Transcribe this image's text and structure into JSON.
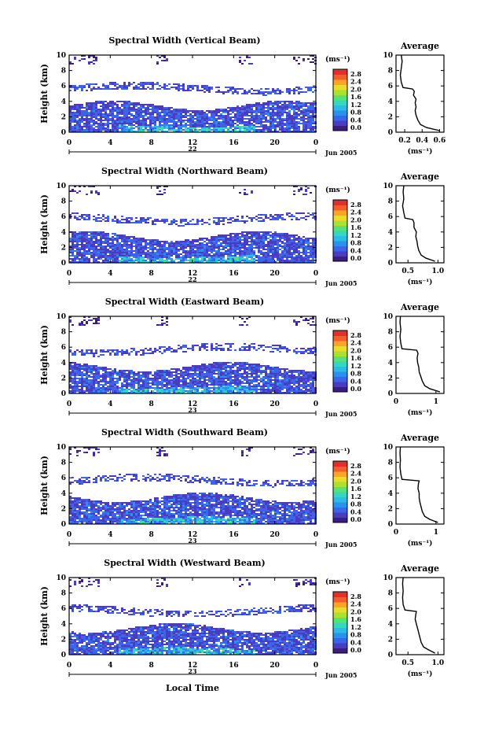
{
  "colorbar": {
    "unit_label": "(ms⁻¹)",
    "ticks": [
      "0.0",
      "0.4",
      "0.8",
      "1.2",
      "1.6",
      "2.0",
      "2.4",
      "2.8"
    ],
    "colors": [
      "#3a1f7a",
      "#4b3bbf",
      "#3f63e8",
      "#2e8fef",
      "#2bbbe6",
      "#35d7c3",
      "#55e27e",
      "#a6e335",
      "#e8dd2a",
      "#f7a626",
      "#f2602a",
      "#e0302a"
    ]
  },
  "common": {
    "x_ticks": [
      "0",
      "4",
      "8",
      "12",
      "16",
      "20",
      "0"
    ],
    "y_ticks": [
      "0",
      "2",
      "4",
      "6",
      "8",
      "10"
    ],
    "ylabel": "Height (km)",
    "day_label_1": "22",
    "day_label_2": "23",
    "month_label": "Jun 2005",
    "xlabel": "Local Time",
    "avg_title": "Average",
    "avg_unit": "(ms⁻¹)"
  },
  "chart_data": [
    {
      "type": "heatmap",
      "title": "Spectral Width (Vertical Beam)",
      "day_label": "22",
      "xlim": [
        0,
        24
      ],
      "ylim": [
        0,
        10
      ],
      "avg_xticks": [
        "0.2",
        "0.4",
        "0.6"
      ],
      "avg_xlim": [
        0.1,
        0.65
      ],
      "profile": [
        [
          0.6,
          0.2
        ],
        [
          0.45,
          0.6
        ],
        [
          0.38,
          1
        ],
        [
          0.35,
          1.6
        ],
        [
          0.33,
          2.2
        ],
        [
          0.32,
          2.8
        ],
        [
          0.33,
          3.3
        ],
        [
          0.32,
          3.8
        ],
        [
          0.33,
          4.3
        ],
        [
          0.3,
          4.8
        ],
        [
          0.31,
          5.3
        ],
        [
          0.29,
          5.6
        ],
        [
          0.18,
          5.8
        ],
        [
          0.16,
          6.5
        ],
        [
          0.15,
          7.4
        ],
        [
          0.16,
          8.3
        ],
        [
          0.17,
          9.2
        ],
        [
          0.16,
          10
        ]
      ]
    },
    {
      "type": "heatmap",
      "title": "Spectral Width (Northward Beam)",
      "day_label": "22",
      "xlim": [
        0,
        24
      ],
      "ylim": [
        0,
        10
      ],
      "avg_xticks": [
        "0.5",
        "1.0"
      ],
      "avg_xlim": [
        0.3,
        1.1
      ],
      "profile": [
        [
          0.95,
          0.2
        ],
        [
          0.8,
          0.6
        ],
        [
          0.72,
          1
        ],
        [
          0.68,
          1.6
        ],
        [
          0.66,
          2.2
        ],
        [
          0.65,
          2.8
        ],
        [
          0.63,
          3.4
        ],
        [
          0.64,
          4
        ],
        [
          0.6,
          4.6
        ],
        [
          0.6,
          5.2
        ],
        [
          0.58,
          5.6
        ],
        [
          0.45,
          5.8
        ],
        [
          0.43,
          6.5
        ],
        [
          0.41,
          7.4
        ],
        [
          0.43,
          8.3
        ],
        [
          0.42,
          9.2
        ],
        [
          0.43,
          10
        ]
      ]
    },
    {
      "type": "heatmap",
      "title": "Spectral Width (Eastward Beam)",
      "day_label": "23",
      "xlim": [
        0,
        24
      ],
      "ylim": [
        0,
        10
      ],
      "avg_xticks": [
        "0",
        "1"
      ],
      "avg_xlim": [
        0,
        1.2
      ],
      "profile": [
        [
          1.1,
          0.2
        ],
        [
          0.85,
          0.6
        ],
        [
          0.72,
          1
        ],
        [
          0.66,
          1.6
        ],
        [
          0.62,
          2.2
        ],
        [
          0.58,
          2.8
        ],
        [
          0.57,
          3.4
        ],
        [
          0.54,
          4
        ],
        [
          0.53,
          4.6
        ],
        [
          0.55,
          5.2
        ],
        [
          0.52,
          5.6
        ],
        [
          0.15,
          5.8
        ],
        [
          0.12,
          6.5
        ],
        [
          0.1,
          7.4
        ],
        [
          0.12,
          8.3
        ],
        [
          0.1,
          9.2
        ],
        [
          0.11,
          10
        ]
      ]
    },
    {
      "type": "heatmap",
      "title": "Spectral Width (Southward Beam)",
      "day_label": "23",
      "xlim": [
        0,
        24
      ],
      "ylim": [
        0,
        10
      ],
      "avg_xticks": [
        "0",
        "1"
      ],
      "avg_xlim": [
        0,
        1.2
      ],
      "profile": [
        [
          1.05,
          0.2
        ],
        [
          0.85,
          0.6
        ],
        [
          0.72,
          1
        ],
        [
          0.66,
          1.6
        ],
        [
          0.63,
          2.2
        ],
        [
          0.6,
          2.8
        ],
        [
          0.58,
          3.4
        ],
        [
          0.58,
          4
        ],
        [
          0.55,
          4.6
        ],
        [
          0.56,
          5.2
        ],
        [
          0.58,
          5.6
        ],
        [
          0.15,
          5.8
        ],
        [
          0.12,
          6.5
        ],
        [
          0.1,
          7.4
        ],
        [
          0.11,
          8.3
        ],
        [
          0.1,
          9.2
        ],
        [
          0.11,
          10
        ]
      ]
    },
    {
      "type": "heatmap",
      "title": "Spectral Width (Westward Beam)",
      "day_label": "23",
      "xlim": [
        0,
        24
      ],
      "ylim": [
        0,
        10
      ],
      "avg_xticks": [
        "0.5",
        "1.0"
      ],
      "avg_xlim": [
        0.3,
        1.1
      ],
      "profile": [
        [
          0.95,
          0.2
        ],
        [
          0.85,
          0.6
        ],
        [
          0.76,
          1
        ],
        [
          0.72,
          1.6
        ],
        [
          0.7,
          2.2
        ],
        [
          0.68,
          2.8
        ],
        [
          0.66,
          3.4
        ],
        [
          0.64,
          4
        ],
        [
          0.62,
          4.6
        ],
        [
          0.63,
          5.2
        ],
        [
          0.64,
          5.6
        ],
        [
          0.45,
          5.8
        ],
        [
          0.42,
          6.5
        ],
        [
          0.41,
          7.4
        ],
        [
          0.42,
          8.3
        ],
        [
          0.41,
          9.2
        ],
        [
          0.42,
          10
        ]
      ]
    }
  ]
}
